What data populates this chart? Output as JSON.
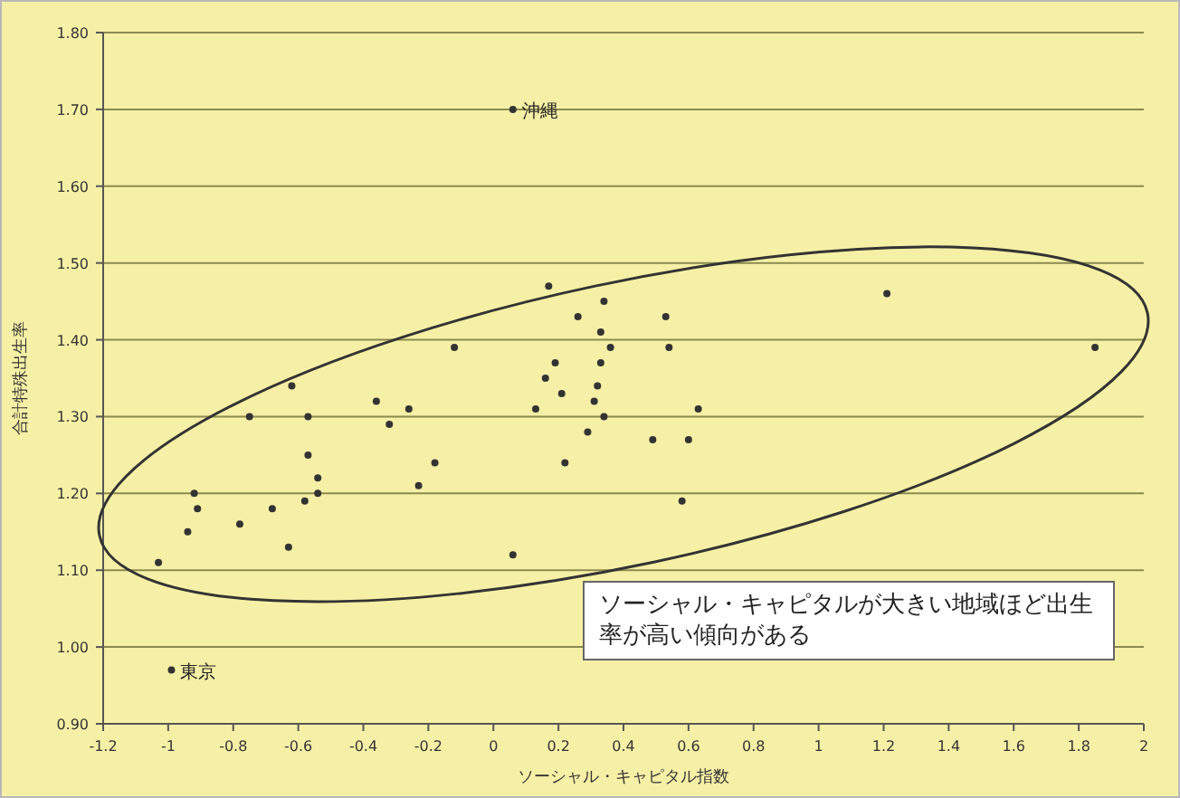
{
  "chart_data": {
    "type": "scatter",
    "xlabel": "ソーシャル・キャピタル指数",
    "ylabel": "合計特殊出生率",
    "color": "#333333",
    "marker": "circle",
    "grid": "y",
    "xlim": [
      -1.2,
      2
    ],
    "ylim": [
      0.9,
      1.8
    ],
    "xticks": [
      -1.2,
      -1,
      -0.8,
      -0.6,
      -0.4,
      -0.2,
      0,
      0.2,
      0.4,
      0.6,
      0.8,
      1,
      1.2,
      1.4,
      1.6,
      1.8,
      2
    ],
    "yticks": [
      {
        "value": 0.9,
        "label": "0.90"
      },
      {
        "value": 1.0,
        "label": "1.00"
      },
      {
        "value": 1.1,
        "label": "1.10"
      },
      {
        "value": 1.2,
        "label": "1.20"
      },
      {
        "value": 1.3,
        "label": "1.30"
      },
      {
        "value": 1.4,
        "label": "1.40"
      },
      {
        "value": 1.5,
        "label": "1.50"
      },
      {
        "value": 1.6,
        "label": "1.60"
      },
      {
        "value": 1.7,
        "label": "1.70"
      },
      {
        "value": 1.8,
        "label": "1.80"
      }
    ],
    "x": [
      0.17,
      0.34,
      0.53,
      0.26,
      0.33,
      0.36,
      0.54,
      -0.12,
      0.19,
      0.16,
      0.33,
      0.32,
      0.21,
      0.13,
      0.31,
      0.34,
      0.29,
      0.63,
      0.6,
      0.49,
      0.22,
      0.58,
      -0.62,
      -0.36,
      -0.26,
      -0.57,
      -0.32,
      -0.75,
      -0.57,
      -0.18,
      -0.23,
      -0.54,
      -0.54,
      -0.58,
      -0.68,
      -0.92,
      -0.91,
      -0.78,
      -0.63,
      -0.94,
      -1.03,
      -0.99,
      0.06,
      0.06,
      1.21,
      1.85
    ],
    "values": [
      1.47,
      1.45,
      1.43,
      1.43,
      1.41,
      1.39,
      1.39,
      1.39,
      1.37,
      1.35,
      1.37,
      1.34,
      1.33,
      1.31,
      1.32,
      1.3,
      1.28,
      1.31,
      1.27,
      1.27,
      1.24,
      1.19,
      1.34,
      1.32,
      1.31,
      1.3,
      1.29,
      1.3,
      1.25,
      1.24,
      1.21,
      1.22,
      1.2,
      1.19,
      1.18,
      1.2,
      1.18,
      1.16,
      1.13,
      1.15,
      1.11,
      0.97,
      1.12,
      1.7,
      1.46,
      1.39
    ],
    "annotations": [
      {
        "text": "沖縄",
        "x": 0.06,
        "y": 1.7
      },
      {
        "text": "東京",
        "x": -0.99,
        "y": 0.97
      },
      "ソーシャル・キャピタルが大きい地域ほど出生率が高い傾向がある"
    ]
  }
}
